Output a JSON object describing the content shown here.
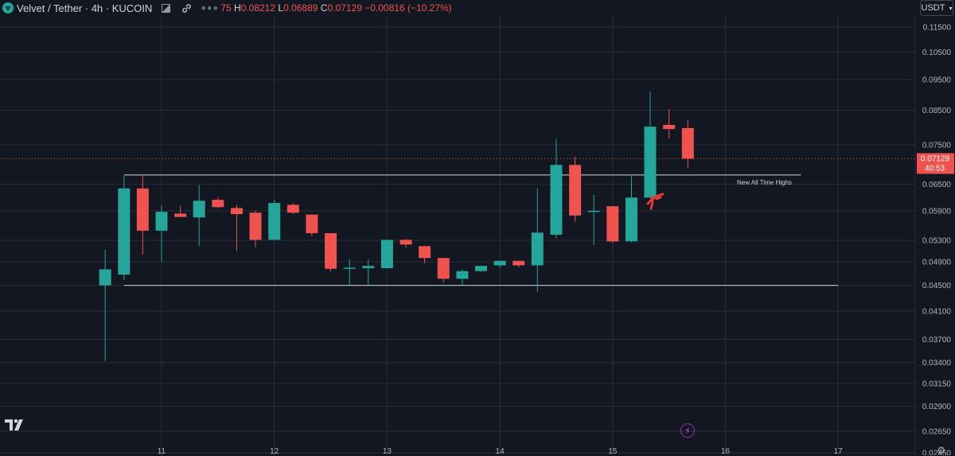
{
  "header": {
    "symbol": "Velvet / Tether · 4h · KUCOIN",
    "more": "∘∘∘",
    "ohlc_prefix": "75",
    "h_label": "H",
    "h_value": "0.08212",
    "l_label": "L",
    "l_value": "0.06889",
    "c_label": "C",
    "c_value": "0.07129",
    "change": "−0.00816 (−10.27%)"
  },
  "currency_button": "USDT",
  "last_price_label": "0.07129",
  "countdown_label": "40:53",
  "colors": {
    "background": "#131722",
    "up": "#26a69a",
    "down": "#ef5350",
    "grid": "#2a2e39",
    "annotation": "#e53935"
  },
  "icons": [
    "tradingview-logo-icon",
    "chart-options-icon",
    "link-icon",
    "more-icon",
    "flash-icon",
    "settings-icon"
  ],
  "chart_data": {
    "type": "candlestick",
    "x_ticks": [
      "11",
      "12",
      "13",
      "14",
      "15",
      "16",
      "17"
    ],
    "y_ticks": [
      "0.11500",
      "0.10500",
      "0.09500",
      "0.08500",
      "0.07500",
      "0.06500",
      "0.05900",
      "0.05300",
      "0.04900",
      "0.04500",
      "0.04100",
      "0.03700",
      "0.03400",
      "0.03150",
      "0.02900",
      "0.02650",
      "0.02450"
    ],
    "y_scale": "log",
    "last_price": 0.07129,
    "annotation": "New All Time Highs",
    "hlines": [
      {
        "value": 0.0672,
        "from_day": 10.67,
        "to_day": 16.67,
        "label": "New All Time Highs"
      },
      {
        "value": 0.045,
        "from_day": 10.67,
        "to_day": 17.0,
        "label": ""
      }
    ],
    "candles": [
      {
        "t": 10.5,
        "o": 0.045,
        "h": 0.0512,
        "l": 0.0342,
        "c": 0.0477
      },
      {
        "t": 10.667,
        "o": 0.0468,
        "h": 0.0672,
        "l": 0.0459,
        "c": 0.064
      },
      {
        "t": 10.833,
        "o": 0.064,
        "h": 0.0672,
        "l": 0.0503,
        "c": 0.0549
      },
      {
        "t": 11.0,
        "o": 0.0549,
        "h": 0.0601,
        "l": 0.049,
        "c": 0.0588
      },
      {
        "t": 11.167,
        "o": 0.0584,
        "h": 0.0601,
        "l": 0.0578,
        "c": 0.0577
      },
      {
        "t": 11.333,
        "o": 0.0576,
        "h": 0.0648,
        "l": 0.0519,
        "c": 0.0612
      },
      {
        "t": 11.5,
        "o": 0.0614,
        "h": 0.062,
        "l": 0.0595,
        "c": 0.0598
      },
      {
        "t": 11.667,
        "o": 0.0596,
        "h": 0.0603,
        "l": 0.051,
        "c": 0.0583
      },
      {
        "t": 11.833,
        "o": 0.0586,
        "h": 0.0591,
        "l": 0.0517,
        "c": 0.0531
      },
      {
        "t": 12.0,
        "o": 0.0531,
        "h": 0.0614,
        "l": 0.0531,
        "c": 0.0607
      },
      {
        "t": 12.167,
        "o": 0.0603,
        "h": 0.0607,
        "l": 0.0583,
        "c": 0.0586
      },
      {
        "t": 12.333,
        "o": 0.0582,
        "h": 0.0582,
        "l": 0.0538,
        "c": 0.0544
      },
      {
        "t": 12.5,
        "o": 0.0544,
        "h": 0.0544,
        "l": 0.0473,
        "c": 0.0478
      },
      {
        "t": 12.667,
        "o": 0.0478,
        "h": 0.0495,
        "l": 0.045,
        "c": 0.048
      },
      {
        "t": 12.833,
        "o": 0.0479,
        "h": 0.0495,
        "l": 0.0451,
        "c": 0.0483
      },
      {
        "t": 13.0,
        "o": 0.0479,
        "h": 0.0531,
        "l": 0.0479,
        "c": 0.0531
      },
      {
        "t": 13.167,
        "o": 0.0531,
        "h": 0.0533,
        "l": 0.0516,
        "c": 0.0522
      },
      {
        "t": 13.333,
        "o": 0.0519,
        "h": 0.052,
        "l": 0.0488,
        "c": 0.0497
      },
      {
        "t": 13.5,
        "o": 0.0497,
        "h": 0.0497,
        "l": 0.0455,
        "c": 0.0461
      },
      {
        "t": 13.667,
        "o": 0.0461,
        "h": 0.0477,
        "l": 0.0451,
        "c": 0.0474
      },
      {
        "t": 13.833,
        "o": 0.0474,
        "h": 0.0483,
        "l": 0.0472,
        "c": 0.0483
      },
      {
        "t": 14.0,
        "o": 0.0484,
        "h": 0.0492,
        "l": 0.048,
        "c": 0.0492
      },
      {
        "t": 14.167,
        "o": 0.0492,
        "h": 0.0492,
        "l": 0.048,
        "c": 0.0484
      },
      {
        "t": 14.333,
        "o": 0.0484,
        "h": 0.064,
        "l": 0.044,
        "c": 0.0545
      },
      {
        "t": 14.5,
        "o": 0.0541,
        "h": 0.0765,
        "l": 0.0534,
        "c": 0.0697
      },
      {
        "t": 14.667,
        "o": 0.0697,
        "h": 0.0718,
        "l": 0.0567,
        "c": 0.058
      },
      {
        "t": 14.833,
        "o": 0.059,
        "h": 0.0625,
        "l": 0.0521,
        "c": 0.059
      },
      {
        "t": 15.0,
        "o": 0.06,
        "h": 0.06,
        "l": 0.0525,
        "c": 0.0528
      },
      {
        "t": 15.167,
        "o": 0.0528,
        "h": 0.0672,
        "l": 0.0526,
        "c": 0.0619
      },
      {
        "t": 15.333,
        "o": 0.0619,
        "h": 0.091,
        "l": 0.0619,
        "c": 0.0801
      },
      {
        "t": 15.5,
        "o": 0.0806,
        "h": 0.0853,
        "l": 0.0767,
        "c": 0.0794
      },
      {
        "t": 15.667,
        "o": 0.0797,
        "h": 0.0821,
        "l": 0.0689,
        "c": 0.0713
      }
    ]
  }
}
